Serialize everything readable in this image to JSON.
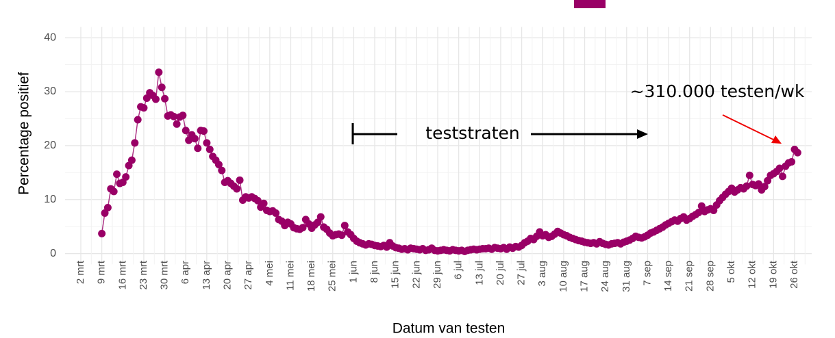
{
  "chart_data": {
    "type": "scatter",
    "x_label": "Datum van testen",
    "y_label": "Percentage positief",
    "annotations": [
      "teststraten",
      "~310.000 testen/wk"
    ],
    "x": [
      "2 mrt",
      "3 mrt",
      "4 mrt",
      "5 mrt",
      "6 mrt",
      "7 mrt",
      "8 mrt",
      "9 mrt",
      "10 mrt",
      "11 mrt",
      "12 mrt",
      "13 mrt",
      "14 mrt",
      "15 mrt",
      "16 mrt",
      "17 mrt",
      "18 mrt",
      "19 mrt",
      "20 mrt",
      "21 mrt",
      "22 mrt",
      "23 mrt",
      "24 mrt",
      "25 mrt",
      "26 mrt",
      "27 mrt",
      "28 mrt",
      "29 mrt",
      "30 mrt",
      "31 mrt",
      "1 apr",
      "2 apr",
      "3 apr",
      "4 apr",
      "5 apr",
      "6 apr",
      "7 apr",
      "8 apr",
      "9 apr",
      "10 apr",
      "11 apr",
      "12 apr",
      "13 apr",
      "14 apr",
      "15 apr",
      "16 apr",
      "17 apr",
      "18 apr",
      "19 apr",
      "20 apr",
      "21 apr",
      "22 apr",
      "23 apr",
      "24 apr",
      "25 apr",
      "26 apr",
      "27 apr",
      "28 apr",
      "29 apr",
      "30 apr",
      "1 mei",
      "2 mei",
      "3 mei",
      "4 mei",
      "5 mei",
      "6 mei",
      "7 mei",
      "8 mei",
      "9 mei",
      "10 mei",
      "11 mei",
      "12 mei",
      "13 mei",
      "14 mei",
      "15 mei",
      "16 mei",
      "17 mei",
      "18 mei",
      "19 mei",
      "20 mei",
      "21 mei",
      "22 mei",
      "23 mei",
      "24 mei",
      "25 mei",
      "26 mei",
      "27 mei",
      "28 mei",
      "29 mei",
      "30 mei",
      "31 mei",
      "1 jun",
      "2 jun",
      "3 jun",
      "4 jun",
      "5 jun",
      "6 jun",
      "7 jun",
      "8 jun",
      "9 jun",
      "10 jun",
      "11 jun",
      "12 jun",
      "13 jun",
      "14 jun",
      "15 jun",
      "16 jun",
      "17 jun",
      "18 jun",
      "19 jun",
      "20 jun",
      "21 jun",
      "22 jun",
      "23 jun",
      "24 jun",
      "25 jun",
      "26 jun",
      "27 jun",
      "28 jun",
      "29 jun",
      "30 jun",
      "1 jul",
      "2 jul",
      "3 jul",
      "4 jul",
      "5 jul",
      "6 jul",
      "7 jul",
      "8 jul",
      "9 jul",
      "10 jul",
      "11 jul",
      "12 jul",
      "13 jul",
      "14 jul",
      "15 jul",
      "16 jul",
      "17 jul",
      "18 jul",
      "19 jul",
      "20 jul",
      "21 jul",
      "22 jul",
      "23 jul",
      "24 jul",
      "25 jul",
      "26 jul",
      "27 jul",
      "28 jul",
      "29 jul",
      "30 jul",
      "31 jul",
      "1 aug",
      "2 aug",
      "3 aug",
      "4 aug",
      "5 aug",
      "6 aug",
      "7 aug",
      "8 aug",
      "9 aug",
      "10 aug",
      "11 aug",
      "12 aug",
      "13 aug",
      "14 aug",
      "15 aug",
      "16 aug",
      "17 aug",
      "18 aug",
      "19 aug",
      "20 aug",
      "21 aug",
      "22 aug",
      "23 aug",
      "24 aug",
      "25 aug",
      "26 aug",
      "27 aug",
      "28 aug",
      "29 aug",
      "30 aug",
      "31 aug",
      "1 sep",
      "2 sep",
      "3 sep",
      "4 sep",
      "5 sep",
      "6 sep",
      "7 sep",
      "8 sep",
      "9 sep",
      "10 sep",
      "11 sep",
      "12 sep",
      "13 sep",
      "14 sep",
      "15 sep",
      "16 sep",
      "17 sep",
      "18 sep",
      "19 sep",
      "20 sep",
      "21 sep",
      "22 sep",
      "23 sep",
      "24 sep",
      "25 sep",
      "26 sep",
      "27 sep",
      "28 sep",
      "29 sep",
      "30 sep",
      "1 okt",
      "2 okt",
      "3 okt",
      "4 okt",
      "5 okt",
      "6 okt",
      "7 okt",
      "8 okt",
      "9 okt",
      "10 okt",
      "11 okt",
      "12 okt",
      "13 okt",
      "14 okt",
      "15 okt",
      "16 okt",
      "17 okt",
      "18 okt",
      "19 okt",
      "20 okt",
      "21 okt",
      "22 okt",
      "23 okt",
      "24 okt",
      "25 okt",
      "26 okt",
      "27 okt"
    ],
    "series": [
      {
        "color": "#990066",
        "values": [
          null,
          null,
          null,
          null,
          null,
          null,
          null,
          3.7,
          7.5,
          8.5,
          12,
          11.5,
          14.7,
          13,
          13.2,
          14.2,
          16.3,
          17.3,
          20.5,
          24.8,
          27.2,
          27,
          28.8,
          29.8,
          29.3,
          28.6,
          33.6,
          30.8,
          28.7,
          25.5,
          25.7,
          25.4,
          24,
          25.3,
          25.6,
          22.8,
          21,
          22,
          21.3,
          19.5,
          22.8,
          22.7,
          20.5,
          19.3,
          18,
          17.3,
          16.5,
          15.4,
          13.2,
          13.5,
          13,
          12.5,
          12,
          13.6,
          9.9,
          10.5,
          10.3,
          10.5,
          10.2,
          9.8,
          8.6,
          9.3,
          8,
          7.8,
          7.9,
          7.5,
          6.3,
          6.0,
          5.2,
          5.8,
          5.5,
          4.8,
          4.6,
          4.5,
          4.8,
          6.3,
          5.5,
          4.7,
          5.3,
          5.8,
          6.8,
          4.9,
          4.5,
          3.8,
          3.3,
          3.5,
          3.6,
          3.4,
          5.2,
          4.0,
          3.5,
          2.8,
          2.3,
          2.0,
          1.8,
          1.6,
          1.8,
          1.7,
          1.5,
          1.4,
          1.3,
          1.5,
          1.2,
          2.0,
          1.4,
          1.1,
          1.0,
          0.8,
          0.9,
          0.7,
          1.0,
          0.9,
          0.8,
          0.7,
          0.9,
          0.6,
          0.7,
          1.0,
          0.6,
          0.5,
          0.6,
          0.7,
          0.6,
          0.5,
          0.7,
          0.6,
          0.5,
          0.6,
          0.4,
          0.6,
          0.7,
          0.8,
          0.7,
          0.8,
          0.9,
          0.9,
          1.0,
          0.8,
          1.1,
          1.0,
          0.9,
          1.1,
          0.8,
          1.2,
          1.0,
          1.3,
          1.2,
          1.5,
          2.0,
          2.3,
          2.8,
          2.6,
          3.2,
          4.0,
          3.3,
          3.5,
          3.0,
          3.2,
          3.6,
          4.1,
          3.8,
          3.5,
          3.3,
          3.0,
          2.8,
          2.6,
          2.4,
          2.3,
          2.1,
          2.0,
          1.9,
          2.0,
          1.8,
          2.2,
          1.9,
          1.7,
          1.6,
          1.8,
          1.9,
          2.0,
          1.8,
          2.1,
          2.3,
          2.5,
          2.8,
          3.2,
          3.0,
          2.9,
          3.1,
          3.4,
          3.8,
          4.0,
          4.3,
          4.6,
          4.9,
          5.3,
          5.6,
          5.9,
          6.2,
          6.0,
          6.5,
          6.8,
          6.2,
          6.5,
          6.9,
          7.2,
          7.6,
          8.8,
          7.8,
          8.1,
          8.3,
          8.0,
          9.0,
          9.8,
          10.4,
          11.0,
          11.5,
          12.1,
          11.4,
          11.8,
          12.2,
          12.0,
          12.5,
          14.5,
          12.8,
          12.6,
          12.9,
          11.8,
          12.4,
          13.5,
          14.5,
          14.8,
          15.2,
          15.8,
          14.3,
          16.2,
          16.8,
          17.0,
          19.3,
          18.7
        ]
      }
    ],
    "xticks": [
      "2 mrt",
      "9 mrt",
      "16 mrt",
      "23 mrt",
      "30 mrt",
      "6 apr",
      "13 apr",
      "20 apr",
      "27 apr",
      "4 mei",
      "11 mei",
      "18 mei",
      "25 mei",
      "1 jun",
      "8 jun",
      "15 jun",
      "22 jun",
      "29 jun",
      "6 jul",
      "13 jul",
      "20 jul",
      "27 jul",
      "3 aug",
      "10 aug",
      "17 aug",
      "24 aug",
      "31 aug",
      "7 sep",
      "14 sep",
      "21 sep",
      "28 sep",
      "5 okt",
      "12 okt",
      "19 okt",
      "26 okt"
    ],
    "ylim": [
      -2,
      42
    ],
    "yticks": [
      0,
      10,
      20,
      30,
      40
    ],
    "grid": true
  }
}
